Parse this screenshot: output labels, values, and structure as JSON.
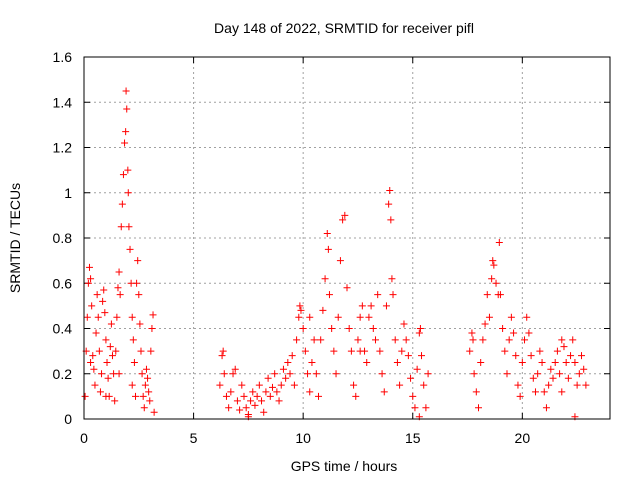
{
  "chart_data": {
    "type": "scatter",
    "title": "Day 148 of 2022, SRMTID for receiver pifl",
    "xlabel": "GPS time / hours",
    "ylabel": "SRMTID / TECUs",
    "xlim": [
      0,
      24
    ],
    "ylim": [
      0,
      1.6
    ],
    "x_ticks": [
      "0",
      "5",
      "10",
      "15",
      "20"
    ],
    "y_ticks": [
      "0",
      "0.2",
      "0.4",
      "0.6",
      "0.8",
      "1",
      "1.2",
      "1.4",
      "1.6"
    ],
    "x_tick_values": [
      0,
      5,
      10,
      15,
      20
    ],
    "y_tick_values": [
      0,
      0.2,
      0.4,
      0.6,
      0.8,
      1.0,
      1.2,
      1.4,
      1.6
    ],
    "grid": true,
    "marker": "+",
    "color": "#ff0000",
    "series": [
      {
        "name": "SRMTID",
        "points": [
          [
            0.05,
            0.1
          ],
          [
            0.1,
            0.3
          ],
          [
            0.15,
            0.45
          ],
          [
            0.2,
            0.6
          ],
          [
            0.25,
            0.67
          ],
          [
            0.3,
            0.62
          ],
          [
            0.35,
            0.5
          ],
          [
            0.4,
            0.28
          ],
          [
            0.45,
            0.22
          ],
          [
            0.5,
            0.15
          ],
          [
            0.55,
            0.38
          ],
          [
            0.6,
            0.55
          ],
          [
            0.65,
            0.45
          ],
          [
            0.7,
            0.3
          ],
          [
            0.75,
            0.12
          ],
          [
            0.8,
            0.2
          ],
          [
            0.85,
            0.52
          ],
          [
            0.9,
            0.57
          ],
          [
            0.95,
            0.47
          ],
          [
            1.0,
            0.35
          ],
          [
            1.05,
            0.25
          ],
          [
            1.1,
            0.18
          ],
          [
            1.15,
            0.1
          ],
          [
            1.2,
            0.32
          ],
          [
            1.25,
            0.42
          ],
          [
            1.3,
            0.28
          ],
          [
            1.35,
            0.2
          ],
          [
            1.4,
            0.08
          ],
          [
            1.45,
            0.3
          ],
          [
            1.5,
            0.45
          ],
          [
            1.55,
            0.58
          ],
          [
            1.6,
            0.65
          ],
          [
            1.65,
            0.55
          ],
          [
            1.7,
            0.85
          ],
          [
            1.75,
            0.95
          ],
          [
            1.8,
            1.08
          ],
          [
            1.85,
            1.22
          ],
          [
            1.9,
            1.27
          ],
          [
            1.92,
            1.45
          ],
          [
            1.95,
            1.37
          ],
          [
            2.0,
            1.1
          ],
          [
            2.02,
            1.0
          ],
          [
            2.05,
            0.85
          ],
          [
            2.1,
            0.75
          ],
          [
            2.15,
            0.6
          ],
          [
            2.2,
            0.45
          ],
          [
            2.25,
            0.35
          ],
          [
            2.3,
            0.25
          ],
          [
            2.35,
            0.1
          ],
          [
            2.4,
            0.6
          ],
          [
            2.45,
            0.7
          ],
          [
            2.5,
            0.55
          ],
          [
            2.55,
            0.42
          ],
          [
            2.6,
            0.3
          ],
          [
            2.65,
            0.2
          ],
          [
            2.7,
            0.1
          ],
          [
            2.75,
            0.05
          ],
          [
            2.8,
            0.15
          ],
          [
            2.85,
            0.22
          ],
          [
            2.9,
            0.18
          ],
          [
            2.95,
            0.12
          ],
          [
            3.0,
            0.08
          ],
          [
            3.05,
            0.3
          ],
          [
            3.1,
            0.4
          ],
          [
            3.15,
            0.46
          ],
          [
            3.2,
            0.03
          ],
          [
            1.0,
            0.1
          ],
          [
            0.3,
            0.25
          ],
          [
            1.6,
            0.2
          ],
          [
            2.2,
            0.15
          ],
          [
            6.2,
            0.15
          ],
          [
            6.3,
            0.28
          ],
          [
            6.35,
            0.3
          ],
          [
            6.4,
            0.2
          ],
          [
            6.5,
            0.1
          ],
          [
            6.6,
            0.05
          ],
          [
            6.7,
            0.12
          ],
          [
            6.8,
            0.2
          ],
          [
            6.9,
            0.22
          ],
          [
            7.0,
            0.08
          ],
          [
            7.1,
            0.04
          ],
          [
            7.2,
            0.15
          ],
          [
            7.3,
            0.1
          ],
          [
            7.4,
            0.05
          ],
          [
            7.5,
            0.02
          ],
          [
            7.6,
            0.08
          ],
          [
            7.7,
            0.12
          ],
          [
            7.8,
            0.06
          ],
          [
            7.9,
            0.1
          ],
          [
            8.0,
            0.15
          ],
          [
            8.1,
            0.08
          ],
          [
            8.2,
            0.03
          ],
          [
            8.3,
            0.12
          ],
          [
            8.4,
            0.18
          ],
          [
            8.5,
            0.1
          ],
          [
            8.6,
            0.14
          ],
          [
            8.7,
            0.2
          ],
          [
            8.8,
            0.12
          ],
          [
            8.9,
            0.08
          ],
          [
            9.0,
            0.15
          ],
          [
            9.1,
            0.22
          ],
          [
            9.2,
            0.18
          ],
          [
            9.3,
            0.25
          ],
          [
            9.4,
            0.2
          ],
          [
            9.5,
            0.28
          ],
          [
            9.6,
            0.15
          ],
          [
            9.7,
            0.35
          ],
          [
            9.8,
            0.45
          ],
          [
            9.85,
            0.5
          ],
          [
            9.9,
            0.48
          ],
          [
            10.0,
            0.4
          ],
          [
            10.1,
            0.3
          ],
          [
            10.2,
            0.2
          ],
          [
            10.3,
            0.12
          ],
          [
            10.4,
            0.25
          ],
          [
            10.5,
            0.35
          ],
          [
            10.6,
            0.2
          ],
          [
            10.7,
            0.1
          ],
          [
            10.8,
            0.35
          ],
          [
            10.9,
            0.48
          ],
          [
            11.0,
            0.62
          ],
          [
            11.1,
            0.82
          ],
          [
            11.15,
            0.75
          ],
          [
            11.2,
            0.55
          ],
          [
            11.3,
            0.4
          ],
          [
            11.4,
            0.3
          ],
          [
            11.5,
            0.2
          ],
          [
            11.6,
            0.45
          ],
          [
            11.7,
            0.7
          ],
          [
            11.8,
            0.88
          ],
          [
            11.9,
            0.9
          ],
          [
            12.0,
            0.58
          ],
          [
            12.1,
            0.4
          ],
          [
            12.2,
            0.3
          ],
          [
            12.3,
            0.15
          ],
          [
            12.4,
            0.1
          ],
          [
            12.5,
            0.35
          ],
          [
            12.6,
            0.45
          ],
          [
            12.7,
            0.5
          ],
          [
            12.8,
            0.3
          ],
          [
            12.9,
            0.25
          ],
          [
            13.0,
            0.45
          ],
          [
            13.1,
            0.5
          ],
          [
            13.2,
            0.4
          ],
          [
            13.3,
            0.35
          ],
          [
            13.4,
            0.55
          ],
          [
            13.5,
            0.3
          ],
          [
            13.6,
            0.2
          ],
          [
            13.7,
            0.12
          ],
          [
            13.8,
            0.5
          ],
          [
            13.9,
            0.95
          ],
          [
            13.95,
            1.01
          ],
          [
            14.0,
            0.88
          ],
          [
            14.05,
            0.62
          ],
          [
            14.1,
            0.55
          ],
          [
            14.2,
            0.35
          ],
          [
            14.3,
            0.25
          ],
          [
            14.4,
            0.15
          ],
          [
            14.5,
            0.3
          ],
          [
            14.6,
            0.42
          ],
          [
            14.7,
            0.35
          ],
          [
            14.8,
            0.28
          ],
          [
            14.9,
            0.18
          ],
          [
            15.0,
            0.1
          ],
          [
            15.1,
            0.05
          ],
          [
            15.2,
            0.22
          ],
          [
            15.3,
            0.38
          ],
          [
            15.35,
            0.4
          ],
          [
            15.4,
            0.28
          ],
          [
            15.5,
            0.15
          ],
          [
            15.6,
            0.05
          ],
          [
            15.7,
            0.2
          ],
          [
            15.3,
            0.01
          ],
          [
            7.5,
            0.01
          ],
          [
            10.3,
            0.45
          ],
          [
            12.6,
            0.3
          ],
          [
            17.6,
            0.3
          ],
          [
            17.7,
            0.38
          ],
          [
            17.75,
            0.35
          ],
          [
            17.8,
            0.2
          ],
          [
            17.9,
            0.12
          ],
          [
            18.0,
            0.05
          ],
          [
            18.1,
            0.25
          ],
          [
            18.2,
            0.35
          ],
          [
            18.3,
            0.42
          ],
          [
            18.4,
            0.55
          ],
          [
            18.5,
            0.45
          ],
          [
            18.6,
            0.62
          ],
          [
            18.65,
            0.7
          ],
          [
            18.7,
            0.68
          ],
          [
            18.8,
            0.6
          ],
          [
            18.9,
            0.55
          ],
          [
            18.95,
            0.78
          ],
          [
            19.0,
            0.55
          ],
          [
            19.1,
            0.4
          ],
          [
            19.2,
            0.3
          ],
          [
            19.3,
            0.2
          ],
          [
            19.4,
            0.35
          ],
          [
            19.5,
            0.45
          ],
          [
            19.6,
            0.38
          ],
          [
            19.7,
            0.28
          ],
          [
            19.8,
            0.15
          ],
          [
            19.9,
            0.1
          ],
          [
            20.0,
            0.25
          ],
          [
            20.1,
            0.35
          ],
          [
            20.2,
            0.45
          ],
          [
            20.3,
            0.38
          ],
          [
            20.4,
            0.28
          ],
          [
            20.5,
            0.18
          ],
          [
            20.6,
            0.12
          ],
          [
            20.7,
            0.2
          ],
          [
            20.8,
            0.3
          ],
          [
            20.9,
            0.25
          ],
          [
            21.0,
            0.12
          ],
          [
            21.1,
            0.05
          ],
          [
            21.2,
            0.15
          ],
          [
            21.3,
            0.22
          ],
          [
            21.4,
            0.18
          ],
          [
            21.5,
            0.25
          ],
          [
            21.6,
            0.3
          ],
          [
            21.7,
            0.2
          ],
          [
            21.8,
            0.35
          ],
          [
            21.9,
            0.32
          ],
          [
            22.0,
            0.25
          ],
          [
            22.1,
            0.18
          ],
          [
            22.2,
            0.28
          ],
          [
            22.3,
            0.35
          ],
          [
            22.4,
            0.25
          ],
          [
            22.5,
            0.15
          ],
          [
            22.6,
            0.2
          ],
          [
            22.7,
            0.28
          ],
          [
            22.8,
            0.22
          ],
          [
            22.9,
            0.15
          ],
          [
            22.4,
            0.01
          ],
          [
            21.8,
            0.12
          ]
        ]
      }
    ]
  }
}
